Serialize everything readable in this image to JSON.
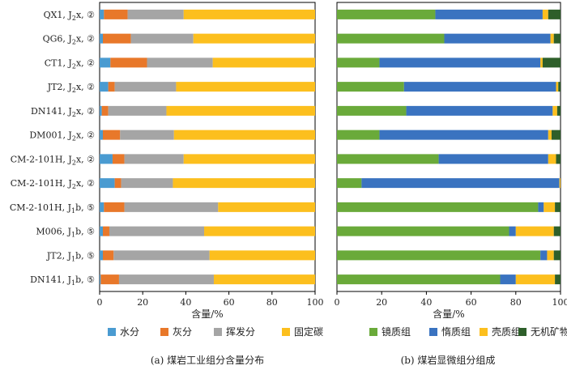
{
  "chart_data": [
    {
      "type": "bar",
      "orientation": "horizontal",
      "stacked": true,
      "caption": "(a) 煤岩工业组分含量分布",
      "xlabel": "含量/%",
      "xlim": [
        0,
        100
      ],
      "xticks": [
        "0",
        "20",
        "40",
        "60",
        "80",
        "100"
      ],
      "categories": [
        {
          "main": "QX1, J",
          "sub": "2",
          "rest": "x, ②"
        },
        {
          "main": "QG6, J",
          "sub": "2",
          "rest": "x, ②"
        },
        {
          "main": "CT1, J",
          "sub": "2",
          "rest": "x, ②"
        },
        {
          "main": "JT2, J",
          "sub": "2",
          "rest": "x, ②"
        },
        {
          "main": "DN141, J",
          "sub": "2",
          "rest": "x, ②"
        },
        {
          "main": "DM001, J",
          "sub": "2",
          "rest": "x, ②"
        },
        {
          "main": "CM-2-101H, J",
          "sub": "2",
          "rest": "x, ②"
        },
        {
          "main": "CM-2-101H, J",
          "sub": "2",
          "rest": "x, ②"
        },
        {
          "main": "CM-2-101H, J",
          "sub": "1",
          "rest": "b, ⑤"
        },
        {
          "main": "M006, J",
          "sub": "1",
          "rest": "b, ⑤"
        },
        {
          "main": "JT2, J",
          "sub": "1",
          "rest": "b, ⑤"
        },
        {
          "main": "DN141, J",
          "sub": "1",
          "rest": "b, ⑤"
        }
      ],
      "series": [
        {
          "name": "水分",
          "color": "#4a9bd1",
          "values": [
            2,
            1.5,
            5,
            4,
            1,
            1.5,
            6,
            7,
            2,
            1.5,
            1.5,
            0.5
          ]
        },
        {
          "name": "灰分",
          "color": "#e8782a",
          "values": [
            11,
            13,
            17,
            3,
            3,
            8,
            5.5,
            3,
            9.5,
            3,
            5,
            8.5
          ]
        },
        {
          "name": "挥发分",
          "color": "#a5a5a5",
          "values": [
            26,
            29,
            30.5,
            28.5,
            27,
            25,
            27.5,
            24,
            43.5,
            44,
            44.5,
            44
          ]
        },
        {
          "name": "固定碳",
          "color": "#fcbf1e",
          "values": [
            61,
            56.5,
            47.5,
            64.5,
            69,
            65.5,
            61,
            66,
            45,
            51.5,
            49,
            47
          ]
        }
      ]
    },
    {
      "type": "bar",
      "orientation": "horizontal",
      "stacked": true,
      "caption": "(b) 煤岩显微组分组成",
      "xlabel": "含量/%",
      "xlim": [
        0,
        100
      ],
      "xticks": [
        "0",
        "20",
        "40",
        "60",
        "80",
        "100"
      ],
      "series": [
        {
          "name": "镜质组",
          "color": "#6aaa3a",
          "values": [
            44,
            48,
            19,
            30,
            31,
            19,
            45.5,
            11,
            90,
            77,
            91,
            73
          ]
        },
        {
          "name": "惰质组",
          "color": "#3a73c0",
          "values": [
            48,
            47.5,
            72,
            68,
            65.5,
            75.5,
            49,
            88.5,
            2.5,
            3,
            3,
            7
          ]
        },
        {
          "name": "壳质组",
          "color": "#fcbf1e",
          "values": [
            2.5,
            1.5,
            1,
            1,
            2,
            1.5,
            3.5,
            0.5,
            5,
            17,
            3,
            17.5
          ]
        },
        {
          "name": "无机矿物",
          "color": "#2e5f2a",
          "values": [
            5.5,
            3,
            8,
            1,
            1.5,
            4,
            2,
            0,
            2.5,
            3,
            3,
            2.5
          ]
        }
      ]
    }
  ]
}
